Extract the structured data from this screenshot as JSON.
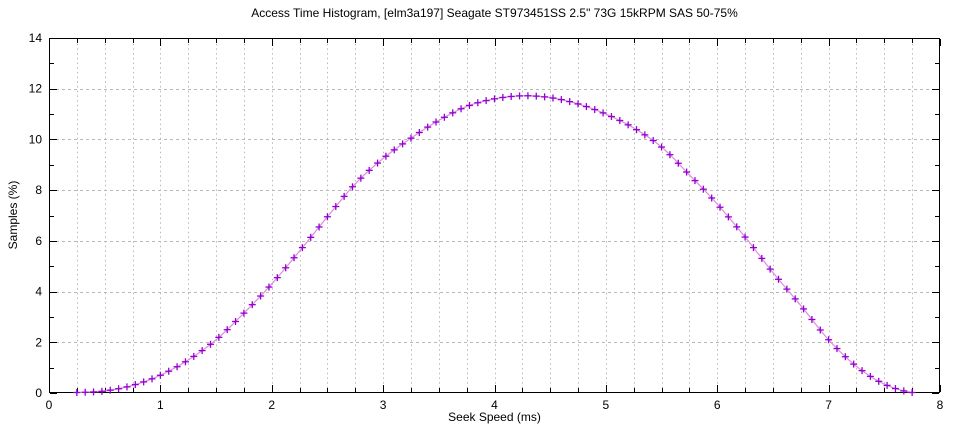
{
  "window": {
    "background": "#ffffff",
    "text_color": "#000000"
  },
  "chart_data": {
    "type": "line",
    "title": "Access Time Histogram, [elm3a197] Seagate ST973451SS 2.5\" 73G 15kRPM SAS 50-75%",
    "xlabel": "Seek Speed (ms)",
    "ylabel": "Samples (%)",
    "xlim": [
      0,
      8
    ],
    "ylim": [
      0,
      14
    ],
    "x_tick_labels": [
      "0",
      "1",
      "2",
      "3",
      "4",
      "5",
      "6",
      "7",
      "8"
    ],
    "y_tick_labels": [
      "0",
      "2",
      "4",
      "6",
      "8",
      "10",
      "12",
      "14"
    ],
    "x_major_step": 1,
    "x_minor_step": 0.25,
    "y_major_step": 2,
    "y_minor_step": 1,
    "grid": {
      "vertical_every": 0.25,
      "horizontal_every": 2,
      "color": "#b8b8b8",
      "style": "dashed",
      "on": true
    },
    "legend": "none",
    "border_color": "#000000",
    "series": [
      {
        "name": "seek_time_histogram",
        "style": "linespoints",
        "marker": "plus",
        "line_color": "#d98ed9",
        "marker_color": "#9400d3",
        "marker_step": 0.075,
        "x": [
          0.25,
          0.5,
          0.75,
          1.0,
          1.25,
          1.5,
          1.75,
          2.0,
          2.25,
          2.5,
          2.75,
          3.0,
          3.25,
          3.5,
          3.75,
          4.0,
          4.25,
          4.5,
          4.75,
          5.0,
          5.25,
          5.5,
          5.75,
          6.0,
          6.25,
          6.5,
          6.75,
          7.0,
          7.25,
          7.5,
          7.75
        ],
        "y": [
          0.02,
          0.08,
          0.3,
          0.7,
          1.3,
          2.1,
          3.15,
          4.3,
          5.6,
          6.95,
          8.25,
          9.25,
          10.05,
          10.75,
          11.3,
          11.6,
          11.72,
          11.65,
          11.4,
          11.0,
          10.45,
          9.7,
          8.6,
          7.45,
          6.15,
          4.75,
          3.45,
          2.1,
          1.05,
          0.35,
          0.02
        ]
      }
    ]
  }
}
